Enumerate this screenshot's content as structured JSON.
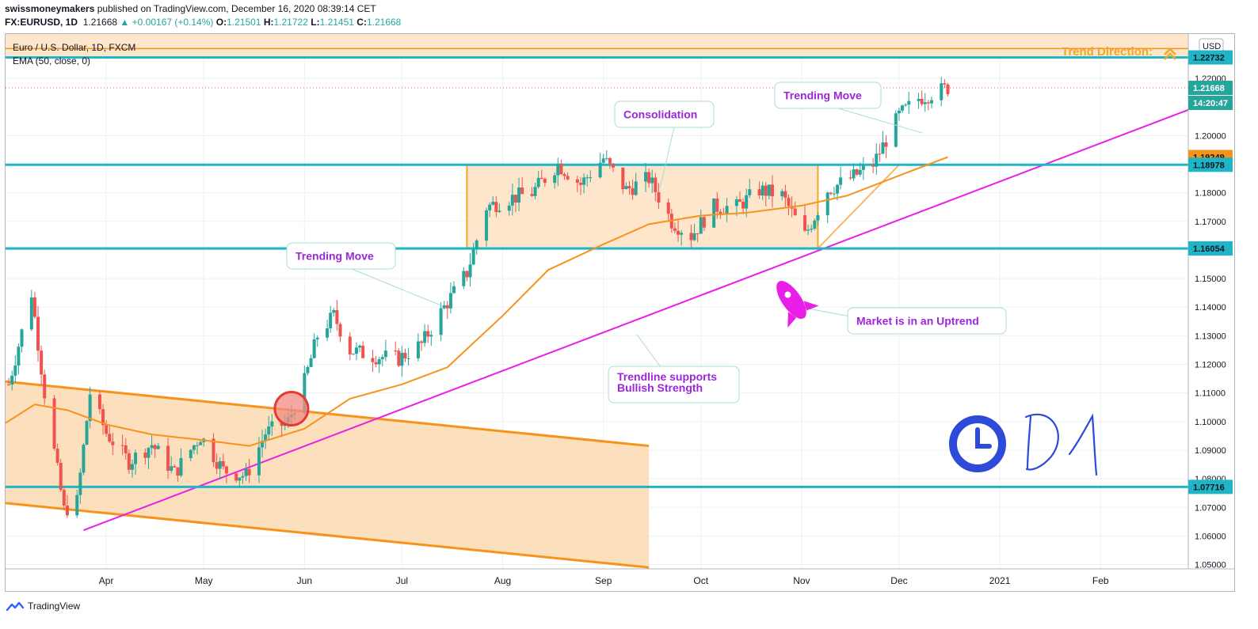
{
  "header": {
    "author": "swissmoneymakers",
    "published_text": " published on TradingView.com, December 16, 2020 08:39:14 CET",
    "symbol_line": "FX:EURUSD, 1D",
    "last": "1.21668",
    "change": "+0.00167 (+0.14%)",
    "o_label": "O:",
    "o": "1.21501",
    "h_label": "H:",
    "h": "1.21722",
    "l_label": "L:",
    "l": "1.21451",
    "c_label": "C:",
    "c": "1.21668"
  },
  "legend": {
    "title": "Euro / U.S. Dollar, 1D, FXCM",
    "ema": "EMA (50, close, 0)"
  },
  "footer": {
    "brand": "TradingView"
  },
  "colors": {
    "up": "#26a69a",
    "down": "#ef5350",
    "ema": "#f7931a",
    "level": "#1fb5c6",
    "trendline": "#e91ee9",
    "channel": "#fcdcb5",
    "annotation_text": "#9c27d8",
    "range_box": "#fde6cc"
  },
  "chart_data": {
    "type": "candlestick",
    "symbol": "EURUSD",
    "timeframe": "1D",
    "currency_label": "USD",
    "x_tick_labels": [
      "Apr",
      "May",
      "Jun",
      "Jul",
      "Aug",
      "Sep",
      "Oct",
      "Nov",
      "Dec",
      "2021",
      "Feb"
    ],
    "x_tick_dates": [
      "2020-04-01",
      "2020-05-01",
      "2020-06-01",
      "2020-07-01",
      "2020-08-01",
      "2020-09-01",
      "2020-10-01",
      "2020-11-01",
      "2020-12-01",
      "2021-01-01",
      "2021-02-01"
    ],
    "x_range": [
      "2020-03-01",
      "2021-02-28"
    ],
    "y_range": [
      1.0485,
      1.2355
    ],
    "y_ticks": [
      "1.05000",
      "1.06000",
      "1.07000",
      "1.08000",
      "1.09000",
      "1.10000",
      "1.11000",
      "1.12000",
      "1.13000",
      "1.14000",
      "1.15000",
      "1.16000",
      "1.17000",
      "1.18000",
      "1.19000",
      "1.20000",
      "1.22000"
    ],
    "price_tags": [
      {
        "value": 1.22732,
        "label": "1.22732",
        "kind": "level"
      },
      {
        "value": 1.21668,
        "label": "1.21668",
        "kind": "last"
      },
      {
        "value": 1.2142,
        "label": "14:20:47",
        "kind": "countdown"
      },
      {
        "value": 1.19249,
        "label": "1.19249",
        "kind": "ema"
      },
      {
        "value": 1.18978,
        "label": "1.18978",
        "kind": "level"
      },
      {
        "value": 1.16054,
        "label": "1.16054",
        "kind": "level"
      },
      {
        "value": 1.07716,
        "label": "1.07716",
        "kind": "level"
      }
    ],
    "horizontal_levels": [
      1.22732,
      1.18978,
      1.16054,
      1.07716
    ],
    "last_price": 1.21668,
    "price_path": [
      [
        "2020-03-02",
        1.113
      ],
      [
        "2020-03-09",
        1.145
      ],
      [
        "2020-03-13",
        1.11
      ],
      [
        "2020-03-19",
        1.069
      ],
      [
        "2020-03-23",
        1.072
      ],
      [
        "2020-03-27",
        1.11
      ],
      [
        "2020-04-01",
        1.096
      ],
      [
        "2020-04-08",
        1.086
      ],
      [
        "2020-04-15",
        1.092
      ],
      [
        "2020-04-22",
        1.082
      ],
      [
        "2020-04-30",
        1.095
      ],
      [
        "2020-05-07",
        1.083
      ],
      [
        "2020-05-14",
        1.081
      ],
      [
        "2020-05-20",
        1.096
      ],
      [
        "2020-05-27",
        1.1
      ],
      [
        "2020-06-01",
        1.114
      ],
      [
        "2020-06-05",
        1.13
      ],
      [
        "2020-06-10",
        1.137
      ],
      [
        "2020-06-15",
        1.125
      ],
      [
        "2020-06-22",
        1.123
      ],
      [
        "2020-06-30",
        1.122
      ],
      [
        "2020-07-07",
        1.127
      ],
      [
        "2020-07-14",
        1.14
      ],
      [
        "2020-07-21",
        1.152
      ],
      [
        "2020-07-27",
        1.175
      ],
      [
        "2020-08-03",
        1.178
      ],
      [
        "2020-08-10",
        1.18
      ],
      [
        "2020-08-18",
        1.19
      ],
      [
        "2020-08-25",
        1.183
      ],
      [
        "2020-09-01",
        1.192
      ],
      [
        "2020-09-08",
        1.181
      ],
      [
        "2020-09-15",
        1.185
      ],
      [
        "2020-09-22",
        1.17
      ],
      [
        "2020-09-28",
        1.165
      ],
      [
        "2020-10-05",
        1.175
      ],
      [
        "2020-10-12",
        1.175
      ],
      [
        "2020-10-19",
        1.181
      ],
      [
        "2020-10-26",
        1.179
      ],
      [
        "2020-11-02",
        1.165
      ],
      [
        "2020-11-09",
        1.181
      ],
      [
        "2020-11-16",
        1.185
      ],
      [
        "2020-11-23",
        1.19
      ],
      [
        "2020-12-01",
        1.207
      ],
      [
        "2020-12-07",
        1.213
      ],
      [
        "2020-12-16",
        1.2167
      ]
    ],
    "ema_path": [
      [
        "2020-03-01",
        1.0995
      ],
      [
        "2020-03-10",
        1.106
      ],
      [
        "2020-03-20",
        1.104
      ],
      [
        "2020-04-01",
        1.099
      ],
      [
        "2020-04-15",
        1.0955
      ],
      [
        "2020-05-01",
        1.0935
      ],
      [
        "2020-05-15",
        1.0915
      ],
      [
        "2020-06-01",
        1.0975
      ],
      [
        "2020-06-15",
        1.108
      ],
      [
        "2020-07-01",
        1.113
      ],
      [
        "2020-07-15",
        1.119
      ],
      [
        "2020-08-01",
        1.137
      ],
      [
        "2020-08-15",
        1.153
      ],
      [
        "2020-09-01",
        1.162
      ],
      [
        "2020-09-15",
        1.169
      ],
      [
        "2020-10-01",
        1.172
      ],
      [
        "2020-10-15",
        1.173
      ],
      [
        "2020-11-01",
        1.1755
      ],
      [
        "2020-11-15",
        1.179
      ],
      [
        "2020-12-01",
        1.186
      ],
      [
        "2020-12-16",
        1.1925
      ]
    ],
    "drawings": {
      "channel": {
        "upper": [
          [
            "2020-03-01",
            1.114
          ],
          [
            "2020-09-15",
            1.0915
          ]
        ],
        "lower": [
          [
            "2020-03-01",
            1.0715
          ],
          [
            "2020-09-15",
            1.049
          ]
        ]
      },
      "range_box": {
        "from": "2020-07-21",
        "to": "2020-11-06",
        "high": 1.18978,
        "low": 1.16054
      },
      "uptrend_line": [
        [
          "2020-03-25",
          1.062
        ],
        [
          "2021-02-28",
          1.209
        ]
      ],
      "pullback_line": [
        [
          "2020-11-06",
          1.16054
        ],
        [
          "2020-12-01",
          1.18978
        ]
      ],
      "breakout_circle": {
        "date": "2020-05-28",
        "value": 1.1045
      },
      "top_band": [
        1.2275,
        1.2355
      ]
    },
    "annotations": [
      {
        "text": "Trending Move",
        "id": "trend-move-1"
      },
      {
        "text": "Consolidation",
        "id": "consolidation"
      },
      {
        "text": "Trending Move",
        "id": "trend-move-2"
      },
      {
        "text": "Market is in an Uptrend",
        "id": "uptrend"
      },
      {
        "text": "Trendline supports\nBullish Strength",
        "id": "trendline-support"
      },
      {
        "text": "Trend Direction:",
        "id": "trend-direction"
      }
    ],
    "handwritten_label": "D1"
  }
}
